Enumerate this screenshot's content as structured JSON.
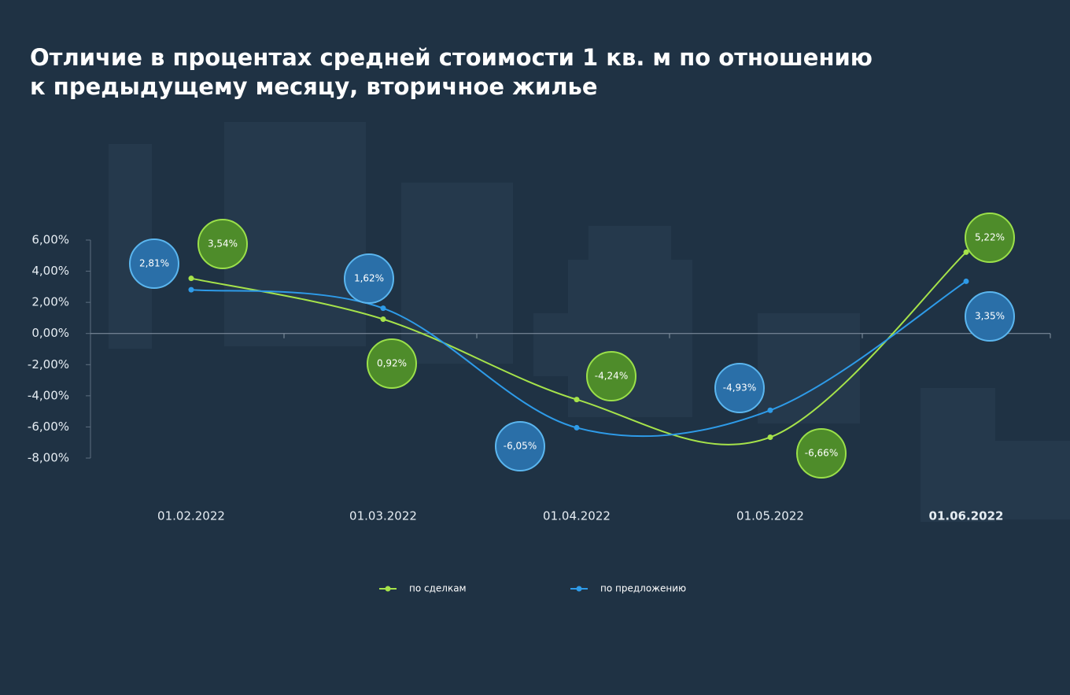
{
  "chart_data": {
    "type": "line",
    "title": [
      "Отличие в процентах средней стоимости 1 кв. м по отношению",
      "к предыдущему месяцу, вторичное жилье"
    ],
    "categories": [
      "01.02.2022",
      "01.03.2022",
      "01.04.2022",
      "01.05.2022",
      "01.06.2022"
    ],
    "series": [
      {
        "name": "по сделкам",
        "color": "#a6e34a",
        "values": [
          3.54,
          0.92,
          -4.24,
          -6.66,
          5.22
        ],
        "value_labels": [
          "3,54%",
          "0,92%",
          "-4,24%",
          "-6,66%",
          "5,22%"
        ]
      },
      {
        "name": "по предложению",
        "color": "#2e9be8",
        "values": [
          2.81,
          1.62,
          -6.05,
          -4.93,
          3.35
        ],
        "value_labels": [
          "2,81%",
          "1,62%",
          "-6,05%",
          "-4,93%",
          "3,35%"
        ]
      }
    ],
    "ylim": [
      -8,
      6
    ],
    "yticks": [
      {
        "value": 6,
        "label": "6,00%"
      },
      {
        "value": 4,
        "label": "4,00%"
      },
      {
        "value": 2,
        "label": "2,00%"
      },
      {
        "value": 0,
        "label": "0,00%"
      },
      {
        "value": -2,
        "label": "-2,00%"
      },
      {
        "value": -4,
        "label": "-4,00%"
      },
      {
        "value": -6,
        "label": "-6,00%"
      },
      {
        "value": -8,
        "label": "-8,00%"
      }
    ]
  }
}
